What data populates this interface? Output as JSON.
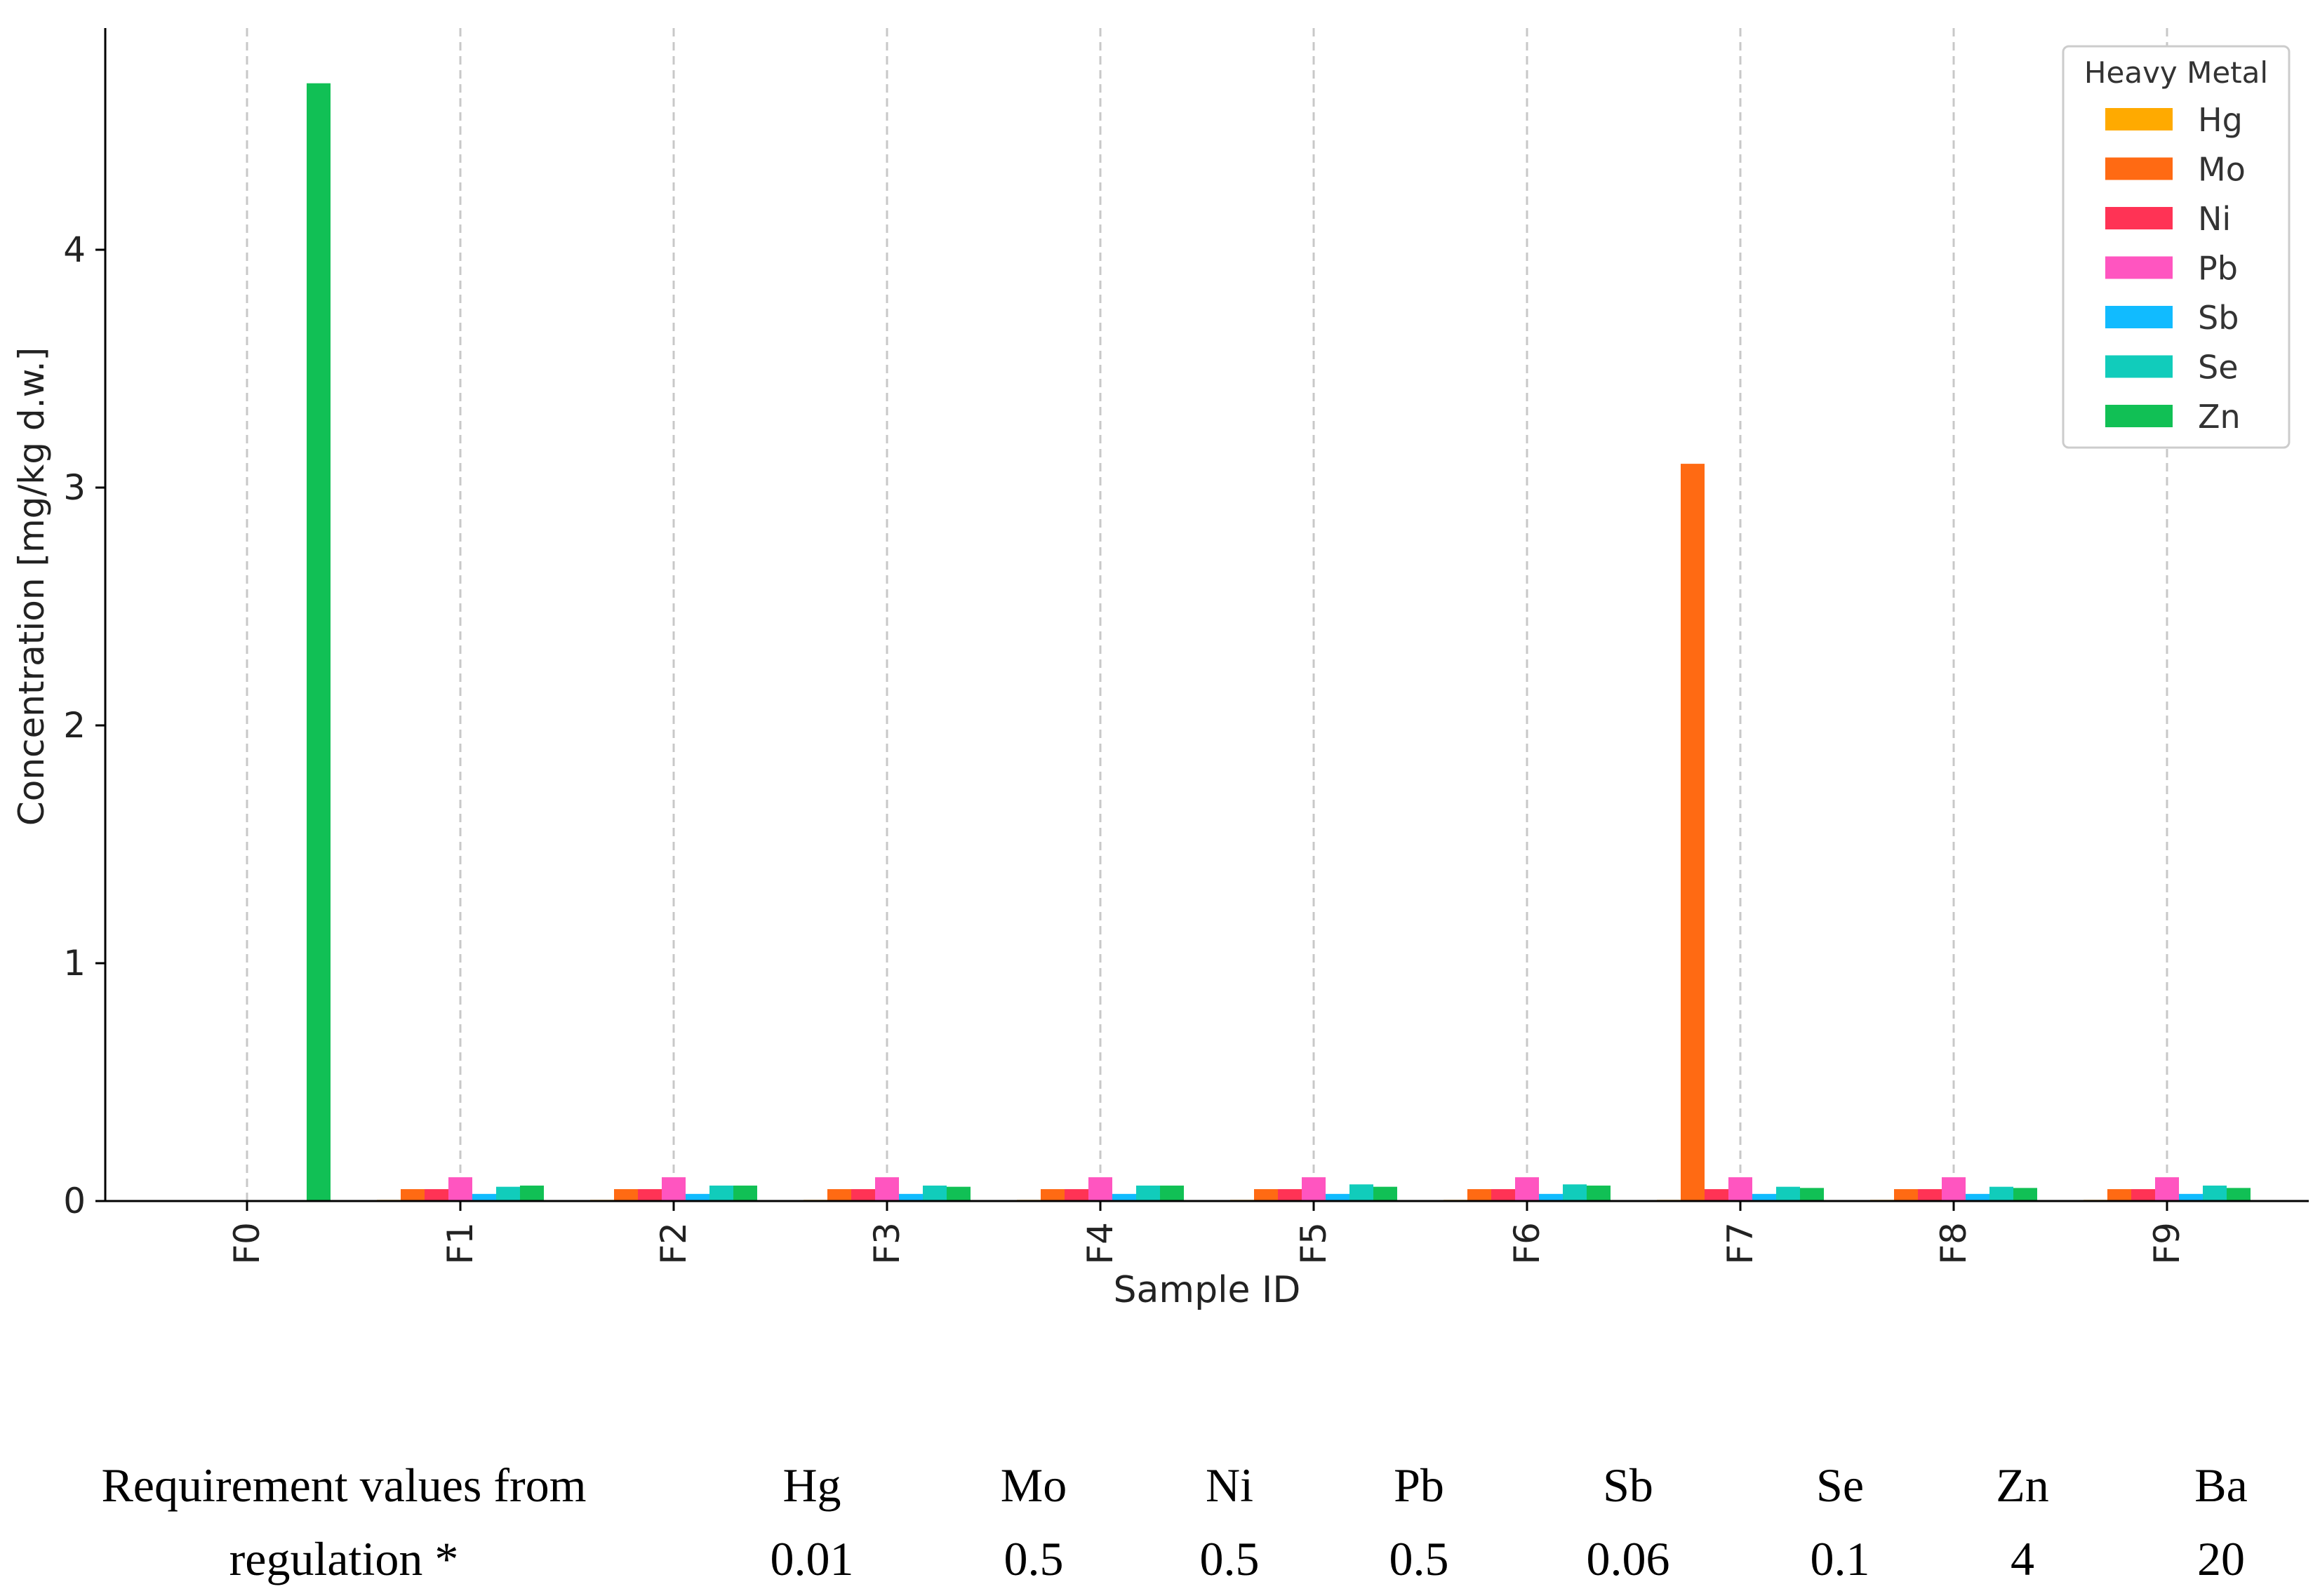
{
  "chart_data": {
    "type": "bar",
    "xlabel": "Sample ID",
    "ylabel": "Concentration [mg/kg d.w.]",
    "ylim": [
      0,
      4.9
    ],
    "yticks": [
      "0",
      "1",
      "2",
      "3",
      "4"
    ],
    "grid": "vertical dashed",
    "categories": [
      "F0",
      "F1",
      "F2",
      "F3",
      "F4",
      "F5",
      "F6",
      "F7",
      "F8",
      "F9"
    ],
    "legend": {
      "title": "Heavy Metal",
      "position": "top-right"
    },
    "series": [
      {
        "name": "Hg",
        "color": "#FFAA00",
        "values": [
          0,
          0.005,
          0.005,
          0.005,
          0.005,
          0.005,
          0.005,
          0.005,
          0.005,
          0.005
        ]
      },
      {
        "name": "Mo",
        "color": "#FF6A13",
        "values": [
          0,
          0.05,
          0.05,
          0.05,
          0.05,
          0.05,
          0.05,
          3.1,
          0.05,
          0.05
        ]
      },
      {
        "name": "Ni",
        "color": "#FF3355",
        "values": [
          0,
          0.05,
          0.05,
          0.05,
          0.05,
          0.05,
          0.05,
          0.05,
          0.05,
          0.05
        ]
      },
      {
        "name": "Pb",
        "color": "#FF55C0",
        "values": [
          0,
          0.1,
          0.1,
          0.1,
          0.1,
          0.1,
          0.1,
          0.1,
          0.1,
          0.1
        ]
      },
      {
        "name": "Sb",
        "color": "#11BBFF",
        "values": [
          0,
          0.03,
          0.03,
          0.03,
          0.03,
          0.03,
          0.03,
          0.03,
          0.03,
          0.03
        ]
      },
      {
        "name": "Se",
        "color": "#11CCBB",
        "values": [
          0,
          0.06,
          0.065,
          0.065,
          0.065,
          0.07,
          0.07,
          0.06,
          0.06,
          0.065
        ]
      },
      {
        "name": "Zn",
        "color": "#11C055",
        "values": [
          4.7,
          0.065,
          0.065,
          0.06,
          0.065,
          0.06,
          0.065,
          0.055,
          0.055,
          0.055
        ]
      }
    ]
  },
  "requirements": {
    "label_line1": "Requirement values from",
    "label_line2": "regulation *",
    "items": [
      {
        "metal": "Hg",
        "value": "0.01"
      },
      {
        "metal": "Mo",
        "value": "0.5"
      },
      {
        "metal": "Ni",
        "value": "0.5"
      },
      {
        "metal": "Pb",
        "value": "0.5"
      },
      {
        "metal": "Sb",
        "value": "0.06"
      },
      {
        "metal": "Se",
        "value": "0.1"
      },
      {
        "metal": "Zn",
        "value": "4"
      },
      {
        "metal": "Ba",
        "value": "20"
      }
    ]
  }
}
